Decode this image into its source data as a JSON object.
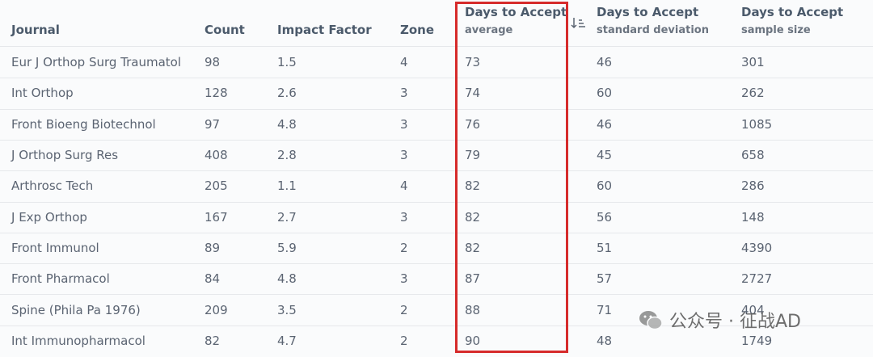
{
  "table": {
    "columns": [
      {
        "title": "Journal"
      },
      {
        "title": "Count"
      },
      {
        "title": "Impact Factor"
      },
      {
        "title": "Zone"
      },
      {
        "title": "Days to Accept",
        "subtitle": "average"
      },
      {
        "title": "Days to Accept",
        "subtitle": "standard deviation"
      },
      {
        "title": "Days to Accept",
        "subtitle": "sample size"
      }
    ],
    "rows": [
      [
        "Eur J Orthop Surg Traumatol",
        "98",
        "1.5",
        "4",
        "73",
        "46",
        "301"
      ],
      [
        "Int Orthop",
        "128",
        "2.6",
        "3",
        "74",
        "60",
        "262"
      ],
      [
        "Front Bioeng Biotechnol",
        "97",
        "4.8",
        "3",
        "76",
        "46",
        "1085"
      ],
      [
        "J Orthop Surg Res",
        "408",
        "2.8",
        "3",
        "79",
        "45",
        "658"
      ],
      [
        "Arthrosc Tech",
        "205",
        "1.1",
        "4",
        "82",
        "60",
        "286"
      ],
      [
        "J Exp Orthop",
        "167",
        "2.7",
        "3",
        "82",
        "56",
        "148"
      ],
      [
        "Front Immunol",
        "89",
        "5.9",
        "2",
        "82",
        "51",
        "4390"
      ],
      [
        "Front Pharmacol",
        "84",
        "4.8",
        "3",
        "87",
        "57",
        "2727"
      ],
      [
        "Spine (Phila Pa 1976)",
        "209",
        "3.5",
        "2",
        "88",
        "71",
        "404"
      ],
      [
        "Int Immunopharmacol",
        "82",
        "4.7",
        "2",
        "90",
        "48",
        "1749"
      ]
    ]
  },
  "watermark": {
    "text": "公众号 · 征战AD"
  }
}
